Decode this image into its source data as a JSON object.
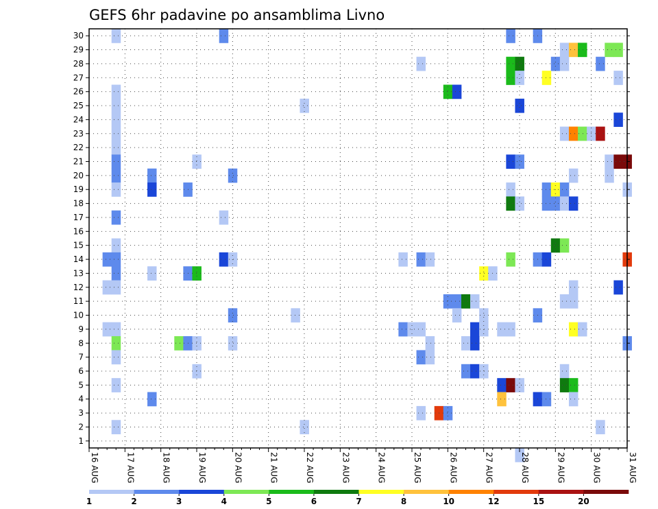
{
  "chart_data": {
    "type": "heatmap",
    "title": "GEFS 6hr padavine po ansamblima Livno",
    "xlabel": "",
    "ylabel": "",
    "x_tick_labels": [
      "16 AUG",
      "17 AUG",
      "18 AUG",
      "19 AUG",
      "20 AUG",
      "21 AUG",
      "22 AUG",
      "23 AUG",
      "24 AUG",
      "25 AUG",
      "26 AUG",
      "27 AUG",
      "28 AUG",
      "29 AUG",
      "30 AUG",
      "31 AUG"
    ],
    "y_tick_labels": [
      "1",
      "2",
      "3",
      "4",
      "5",
      "6",
      "7",
      "8",
      "9",
      "10",
      "11",
      "12",
      "13",
      "14",
      "15",
      "16",
      "17",
      "18",
      "19",
      "20",
      "21",
      "22",
      "23",
      "24",
      "25",
      "26",
      "27",
      "28",
      "29",
      "30"
    ],
    "xlim": [
      0,
      15
    ],
    "ylim": [
      0.5,
      30.5
    ],
    "x_unit": "days after 16 AUG (6-hour steps)",
    "grid": true,
    "colorbar": {
      "position": "bottom",
      "levels": [
        "1",
        "2",
        "3",
        "4",
        "5",
        "6",
        "7",
        "8",
        "10",
        "12",
        "15",
        "20"
      ],
      "colors": [
        "#b4c8f5",
        "#5e8aec",
        "#1a46d8",
        "#7de855",
        "#1bbb1b",
        "#0f7a0f",
        "#ffff23",
        "#ffc23c",
        "#ff8200",
        "#e23a0c",
        "#aa1212",
        "#7a0a0a"
      ]
    },
    "cells": [
      [
        0.75,
        30,
        0
      ],
      [
        3.75,
        30,
        1
      ],
      [
        11.75,
        30,
        1
      ],
      [
        12.5,
        30,
        1
      ],
      [
        13.25,
        29,
        0
      ],
      [
        13.5,
        29,
        7
      ],
      [
        13.75,
        29,
        4
      ],
      [
        14.5,
        29,
        3
      ],
      [
        14.75,
        29,
        3
      ],
      [
        9.25,
        28,
        0
      ],
      [
        11.75,
        28,
        4
      ],
      [
        12,
        28,
        5
      ],
      [
        13,
        28,
        1
      ],
      [
        13.25,
        28,
        0
      ],
      [
        14.25,
        28,
        1
      ],
      [
        11.75,
        27,
        4
      ],
      [
        12,
        27,
        0
      ],
      [
        12.75,
        27,
        6
      ],
      [
        14.75,
        27,
        0
      ],
      [
        0.75,
        26,
        0
      ],
      [
        10,
        26,
        4
      ],
      [
        10.25,
        26,
        2
      ],
      [
        0.75,
        25,
        0
      ],
      [
        6,
        25,
        0
      ],
      [
        12,
        25,
        2
      ],
      [
        0.75,
        24,
        0
      ],
      [
        14.75,
        24,
        2
      ],
      [
        0.75,
        23,
        0
      ],
      [
        13.25,
        23,
        0
      ],
      [
        13.5,
        23,
        8
      ],
      [
        13.75,
        23,
        3
      ],
      [
        14,
        23,
        0
      ],
      [
        14.25,
        23,
        10
      ],
      [
        0.75,
        22,
        0
      ],
      [
        0.75,
        21,
        1
      ],
      [
        3,
        21,
        0
      ],
      [
        11.75,
        21,
        2
      ],
      [
        12,
        21,
        1
      ],
      [
        14.5,
        21,
        0
      ],
      [
        14.75,
        21,
        11
      ],
      [
        15,
        21,
        11
      ],
      [
        0.75,
        20,
        1
      ],
      [
        1.75,
        20,
        1
      ],
      [
        4,
        20,
        1
      ],
      [
        13.5,
        20,
        0
      ],
      [
        14.5,
        20,
        0
      ],
      [
        0.75,
        19,
        0
      ],
      [
        1.75,
        19,
        2
      ],
      [
        2.75,
        19,
        1
      ],
      [
        11.75,
        19,
        0
      ],
      [
        12.75,
        19,
        1
      ],
      [
        13,
        19,
        6
      ],
      [
        13.25,
        19,
        1
      ],
      [
        15,
        19,
        0
      ],
      [
        11.75,
        18,
        5
      ],
      [
        12,
        18,
        0
      ],
      [
        12.75,
        18,
        1
      ],
      [
        13,
        18,
        1
      ],
      [
        13.25,
        18,
        0
      ],
      [
        13.5,
        18,
        2
      ],
      [
        0.75,
        17,
        1
      ],
      [
        3.75,
        17,
        0
      ],
      [
        0.75,
        15,
        0
      ],
      [
        13,
        15,
        5
      ],
      [
        13.25,
        15,
        3
      ],
      [
        0.5,
        14,
        1
      ],
      [
        0.75,
        14,
        1
      ],
      [
        3.75,
        14,
        2
      ],
      [
        4,
        14,
        0
      ],
      [
        8.75,
        14,
        0
      ],
      [
        9.25,
        14,
        1
      ],
      [
        9.5,
        14,
        0
      ],
      [
        11.75,
        14,
        3
      ],
      [
        12.5,
        14,
        1
      ],
      [
        12.75,
        14,
        2
      ],
      [
        15,
        14,
        9
      ],
      [
        0.75,
        13,
        1
      ],
      [
        1.75,
        13,
        0
      ],
      [
        2.75,
        13,
        1
      ],
      [
        3,
        13,
        4
      ],
      [
        11,
        13,
        6
      ],
      [
        11.25,
        13,
        0
      ],
      [
        0.5,
        12,
        0
      ],
      [
        0.75,
        12,
        0
      ],
      [
        13.5,
        12,
        0
      ],
      [
        14.75,
        12,
        2
      ],
      [
        10,
        11,
        1
      ],
      [
        10.25,
        11,
        1
      ],
      [
        10.5,
        11,
        5
      ],
      [
        10.75,
        11,
        0
      ],
      [
        13.25,
        11,
        0
      ],
      [
        13.5,
        11,
        0
      ],
      [
        4,
        10,
        1
      ],
      [
        5.75,
        10,
        0
      ],
      [
        10.25,
        10,
        0
      ],
      [
        11,
        10,
        0
      ],
      [
        12.5,
        10,
        1
      ],
      [
        0.5,
        9,
        0
      ],
      [
        0.75,
        9,
        0
      ],
      [
        8.75,
        9,
        1
      ],
      [
        9,
        9,
        0
      ],
      [
        9.25,
        9,
        0
      ],
      [
        10.75,
        9,
        2
      ],
      [
        11,
        9,
        0
      ],
      [
        11.5,
        9,
        0
      ],
      [
        11.75,
        9,
        0
      ],
      [
        13.5,
        9,
        6
      ],
      [
        13.75,
        9,
        0
      ],
      [
        0.75,
        8,
        3
      ],
      [
        2.5,
        8,
        3
      ],
      [
        2.75,
        8,
        1
      ],
      [
        3,
        8,
        0
      ],
      [
        4,
        8,
        0
      ],
      [
        9.5,
        8,
        0
      ],
      [
        10.5,
        8,
        0
      ],
      [
        10.75,
        8,
        2
      ],
      [
        15,
        8,
        1
      ],
      [
        0.75,
        7,
        0
      ],
      [
        9.25,
        7,
        1
      ],
      [
        9.5,
        7,
        0
      ],
      [
        3,
        6,
        0
      ],
      [
        10.5,
        6,
        1
      ],
      [
        10.75,
        6,
        2
      ],
      [
        11,
        6,
        0
      ],
      [
        13.25,
        6,
        0
      ],
      [
        0.75,
        5,
        0
      ],
      [
        11.5,
        5,
        2
      ],
      [
        11.75,
        5,
        11
      ],
      [
        12,
        5,
        0
      ],
      [
        13.25,
        5,
        5
      ],
      [
        13.5,
        5,
        4
      ],
      [
        1.75,
        4,
        1
      ],
      [
        11.5,
        4,
        7
      ],
      [
        12.5,
        4,
        2
      ],
      [
        12.75,
        4,
        1
      ],
      [
        13.5,
        4,
        0
      ],
      [
        9.25,
        3,
        0
      ],
      [
        9.75,
        3,
        9
      ],
      [
        10,
        3,
        1
      ],
      [
        0.75,
        2,
        0
      ],
      [
        6,
        2,
        0
      ],
      [
        14.25,
        2,
        0
      ],
      [
        12,
        0,
        0
      ]
    ]
  }
}
